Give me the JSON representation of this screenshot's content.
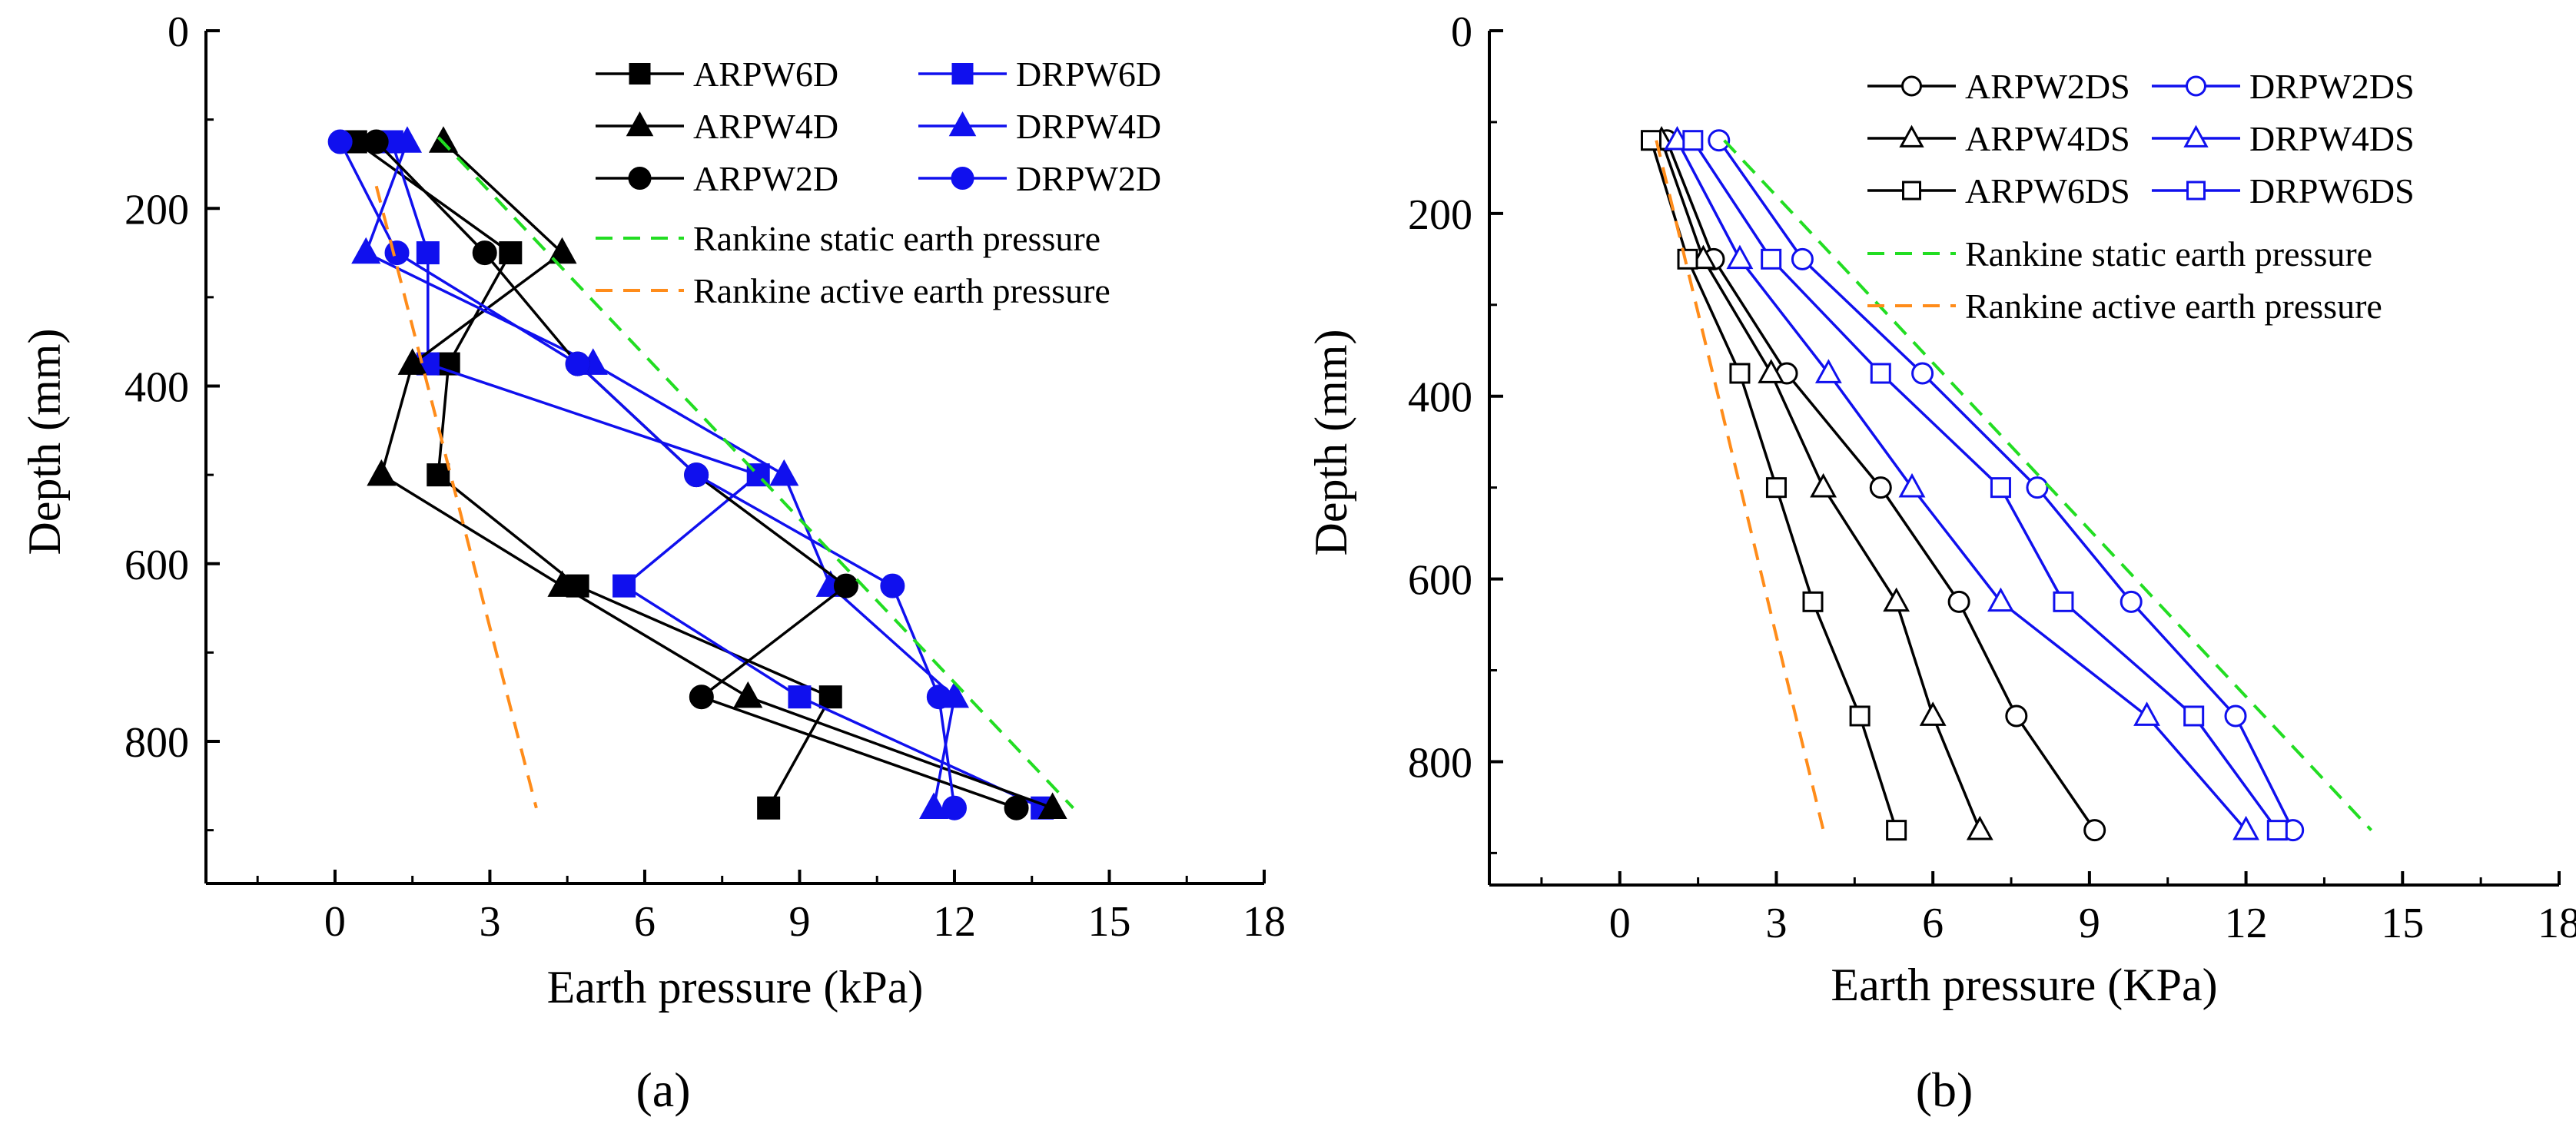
{
  "chart_data": [
    {
      "type": "line",
      "panel_label": "(a)",
      "xlabel": "Earth pressure (kPa)",
      "ylabel": "Depth (mm)",
      "xlim": [
        -2.5,
        18
      ],
      "ylim": [
        0,
        960
      ],
      "y_inverted": true,
      "x_ticks": [
        0,
        3,
        6,
        9,
        12,
        15,
        18
      ],
      "y_ticks": [
        0,
        200,
        400,
        600,
        800
      ],
      "grid": false,
      "legend_position": "top-right",
      "legend_columns": 2,
      "series": [
        {
          "name": "ARPW6D",
          "color": "#000000",
          "marker": "square",
          "fill": "solid",
          "dash": "solid",
          "x": [
            0.4,
            3.4,
            2.2,
            2.0,
            4.7,
            9.6,
            8.4
          ],
          "y": [
            125,
            250,
            375,
            500,
            625,
            750,
            875
          ]
        },
        {
          "name": "DRPW6D",
          "color": "#1010ee",
          "marker": "square",
          "fill": "solid",
          "dash": "solid",
          "x": [
            1.1,
            1.8,
            1.8,
            8.2,
            5.6,
            9.0,
            13.7
          ],
          "y": [
            125,
            250,
            375,
            500,
            625,
            750,
            875
          ]
        },
        {
          "name": "ARPW4D",
          "color": "#000000",
          "marker": "triangle",
          "fill": "solid",
          "dash": "solid",
          "x": [
            2.1,
            4.4,
            1.5,
            0.9,
            4.4,
            8.0,
            13.9
          ],
          "y": [
            125,
            250,
            375,
            500,
            625,
            750,
            875
          ]
        },
        {
          "name": "DRPW4D",
          "color": "#1010ee",
          "marker": "triangle",
          "fill": "solid",
          "dash": "solid",
          "x": [
            1.4,
            0.6,
            5.0,
            8.7,
            9.6,
            12.0,
            11.6
          ],
          "y": [
            125,
            250,
            375,
            500,
            625,
            750,
            875
          ]
        },
        {
          "name": "ARPW2D",
          "color": "#000000",
          "marker": "circle",
          "fill": "solid",
          "dash": "solid",
          "x": [
            0.8,
            2.9,
            4.7,
            7.0,
            9.9,
            7.1,
            13.2
          ],
          "y": [
            125,
            250,
            375,
            500,
            625,
            750,
            875
          ]
        },
        {
          "name": "DRPW2D",
          "color": "#1010ee",
          "marker": "circle",
          "fill": "solid",
          "dash": "solid",
          "x": [
            0.1,
            1.2,
            4.7,
            7.0,
            10.8,
            11.7,
            12.0
          ],
          "y": [
            125,
            250,
            375,
            500,
            625,
            750,
            875
          ]
        },
        {
          "name": "Rankine static earth pressure",
          "color": "#22dd22",
          "marker": "none",
          "dash": "dashed",
          "x": [
            2.0,
            14.3
          ],
          "y": [
            120,
            875
          ]
        },
        {
          "name": "Rankine active earth pressure",
          "color": "#ff8c1a",
          "marker": "none",
          "dash": "dashed",
          "x": [
            0.8,
            3.9
          ],
          "y": [
            175,
            875
          ]
        }
      ]
    },
    {
      "type": "line",
      "panel_label": "(b)",
      "xlabel": "Earth pressure (KPa)",
      "ylabel": "Depth (mm)",
      "xlim": [
        -2.5,
        18
      ],
      "ylim": [
        0,
        935
      ],
      "y_inverted": true,
      "x_ticks": [
        0,
        3,
        6,
        9,
        12,
        15,
        18
      ],
      "y_ticks": [
        0,
        200,
        400,
        600,
        800
      ],
      "grid": false,
      "legend_position": "top-right",
      "legend_columns": 2,
      "series": [
        {
          "name": "ARPW2DS",
          "color": "#000000",
          "marker": "circle",
          "fill": "open",
          "dash": "solid",
          "x": [
            0.9,
            1.8,
            3.2,
            5.0,
            6.5,
            7.6,
            9.1
          ],
          "y": [
            120,
            250,
            375,
            500,
            625,
            750,
            875
          ]
        },
        {
          "name": "DRPW2DS",
          "color": "#1010ee",
          "marker": "circle",
          "fill": "open",
          "dash": "solid",
          "x": [
            1.9,
            3.5,
            5.8,
            8.0,
            9.8,
            11.8,
            12.9
          ],
          "y": [
            120,
            250,
            375,
            500,
            625,
            750,
            875
          ]
        },
        {
          "name": "ARPW4DS",
          "color": "#000000",
          "marker": "triangle",
          "fill": "open",
          "dash": "solid",
          "x": [
            0.8,
            1.6,
            2.9,
            3.9,
            5.3,
            6.0,
            6.9
          ],
          "y": [
            120,
            250,
            375,
            500,
            625,
            750,
            875
          ]
        },
        {
          "name": "DRPW4DS",
          "color": "#1010ee",
          "marker": "triangle",
          "fill": "open",
          "dash": "solid",
          "x": [
            1.1,
            2.3,
            4.0,
            5.6,
            7.3,
            10.1,
            12.0
          ],
          "y": [
            120,
            250,
            375,
            500,
            625,
            750,
            875
          ]
        },
        {
          "name": "ARPW6DS",
          "color": "#000000",
          "marker": "square",
          "fill": "open",
          "dash": "solid",
          "x": [
            0.6,
            1.3,
            2.3,
            3.0,
            3.7,
            4.6,
            5.3
          ],
          "y": [
            120,
            250,
            375,
            500,
            625,
            750,
            875
          ]
        },
        {
          "name": "DRPW6DS",
          "color": "#1010ee",
          "marker": "square",
          "fill": "open",
          "dash": "solid",
          "x": [
            1.4,
            2.9,
            5.0,
            7.3,
            8.5,
            11.0,
            12.6
          ],
          "y": [
            120,
            250,
            375,
            500,
            625,
            750,
            875
          ]
        },
        {
          "name": "Rankine static earth pressure",
          "color": "#22dd22",
          "marker": "none",
          "dash": "dashed",
          "x": [
            2.0,
            14.4
          ],
          "y": [
            120,
            875
          ]
        },
        {
          "name": "Rankine active earth pressure",
          "color": "#ff8c1a",
          "marker": "none",
          "dash": "dashed",
          "x": [
            0.7,
            3.9
          ],
          "y": [
            120,
            875
          ]
        }
      ]
    }
  ]
}
